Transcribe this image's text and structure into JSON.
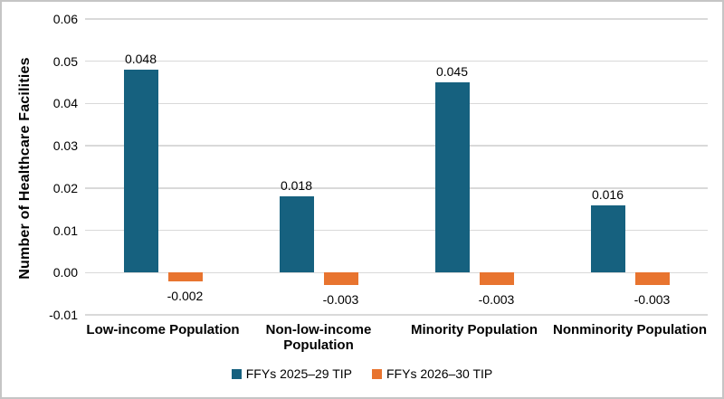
{
  "figure": {
    "background": "#ffffff",
    "border_color": "#c5c5c5",
    "gridline_color": "#d9d9d9",
    "text_color": "#000000"
  },
  "chart_data": {
    "type": "bar",
    "title": "",
    "xlabel": "",
    "ylabel": "Number of Healthcare Facilities",
    "categories": [
      "Low-income Population",
      "Non-low-income Population",
      "Minority Population",
      "Nonminority Population"
    ],
    "series": [
      {
        "name": "FFYs 2025–29 TIP",
        "color": "#16617f",
        "values": [
          0.048,
          0.018,
          0.045,
          0.016
        ],
        "data_labels": [
          "0.048",
          "0.018",
          "0.045",
          "0.016"
        ]
      },
      {
        "name": "FFYs 2026–30 TIP",
        "color": "#e8742f",
        "values": [
          -0.002,
          -0.003,
          -0.003,
          -0.003
        ],
        "data_labels": [
          "-0.002",
          "-0.003",
          "-0.003",
          "-0.003"
        ]
      }
    ],
    "ylim": [
      -0.01,
      0.06
    ],
    "ytick_step": 0.01,
    "ytick_labels": [
      "0.06",
      "0.05",
      "0.04",
      "0.03",
      "0.02",
      "0.01",
      "0.00",
      "-0.01"
    ],
    "grid": "horizontal",
    "legend_position": "bottom"
  }
}
